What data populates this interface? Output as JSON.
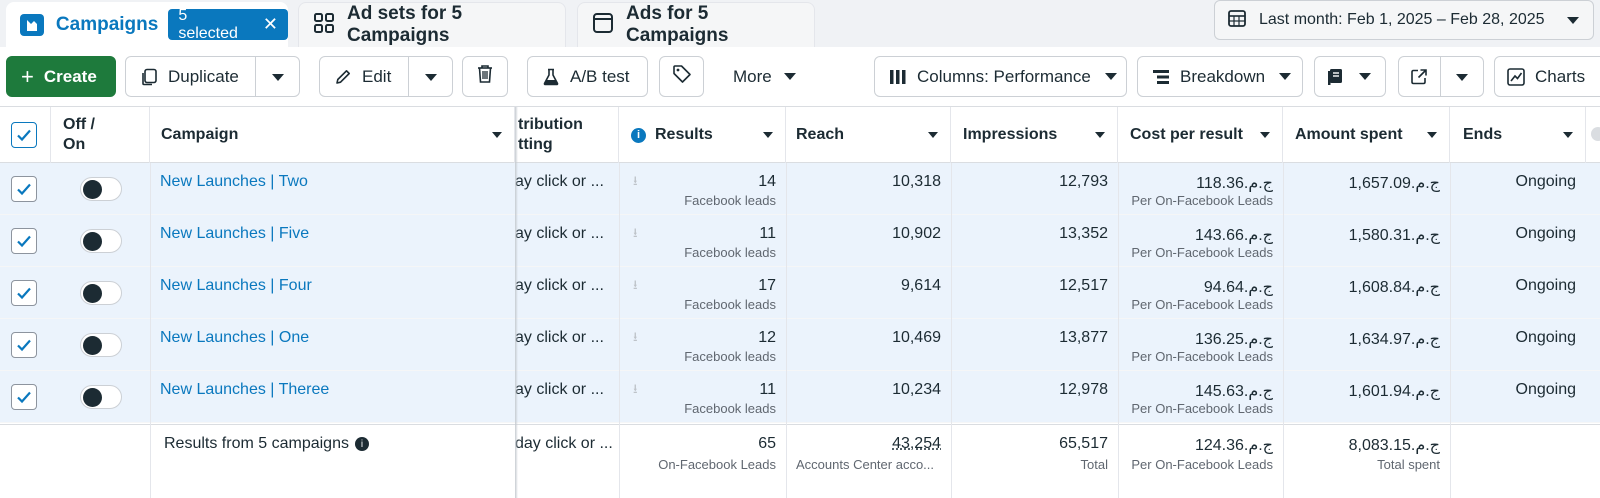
{
  "tabs": {
    "campaigns": {
      "label": "Campaigns",
      "badge": "5 selected"
    },
    "adsets": {
      "label": "Ad sets for 5 Campaigns"
    },
    "ads": {
      "label": "Ads for 5 Campaigns"
    }
  },
  "date_range": {
    "label": "Last month: Feb 1, 2025 – Feb 28, 2025"
  },
  "toolbar": {
    "create": "Create",
    "duplicate": "Duplicate",
    "edit": "Edit",
    "abtest": "A/B test",
    "more": "More",
    "columns": "Columns: Performance",
    "breakdown": "Breakdown",
    "charts": "Charts"
  },
  "columns": {
    "offon_line1": "Off /",
    "offon_line2": "On",
    "campaign": "Campaign",
    "attribution_line1": "tribution",
    "attribution_line2": "tting",
    "results": "Results",
    "reach": "Reach",
    "impressions": "Impressions",
    "cost_per_result": "Cost per result",
    "amount_spent": "Amount spent",
    "ends": "Ends"
  },
  "rows": [
    {
      "name": "New Launches | Two",
      "attribution": "ay click or ...",
      "results": "14",
      "results_sub": "Facebook leads",
      "reach": "10,318",
      "impressions": "12,793",
      "cpr": "ج.م.118.36",
      "cpr_sub": "Per On-Facebook Leads",
      "spent": "ج.م.1,657.09",
      "ends": "Ongoing"
    },
    {
      "name": "New Launches | Five",
      "attribution": "ay click or ...",
      "results": "11",
      "results_sub": "Facebook leads",
      "reach": "10,902",
      "impressions": "13,352",
      "cpr": "ج.م.143.66",
      "cpr_sub": "Per On-Facebook Leads",
      "spent": "ج.م.1,580.31",
      "ends": "Ongoing"
    },
    {
      "name": "New Launches | Four",
      "attribution": "ay click or ...",
      "results": "17",
      "results_sub": "Facebook leads",
      "reach": "9,614",
      "impressions": "12,517",
      "cpr": "ج.م.94.64",
      "cpr_sub": "Per On-Facebook Leads",
      "spent": "ج.م.1,608.84",
      "ends": "Ongoing"
    },
    {
      "name": "New Launches | One",
      "attribution": "ay click or ...",
      "results": "12",
      "results_sub": "Facebook leads",
      "reach": "10,469",
      "impressions": "13,877",
      "cpr": "ج.م.136.25",
      "cpr_sub": "Per On-Facebook Leads",
      "spent": "ج.م.1,634.97",
      "ends": "Ongoing"
    },
    {
      "name": "New Launches | Theree",
      "attribution": "ay click or ...",
      "results": "11",
      "results_sub": "Facebook leads",
      "reach": "10,234",
      "impressions": "12,978",
      "cpr": "ج.م.145.63",
      "cpr_sub": "Per On-Facebook Leads",
      "spent": "ج.م.1,601.94",
      "ends": "Ongoing"
    }
  ],
  "totals": {
    "label": "Results from 5 campaigns",
    "attribution": "day click or ...",
    "results": "65",
    "results_sub": "On-Facebook Leads",
    "reach": "43,254",
    "reach_sub": "Accounts Center acco...",
    "impressions": "65,517",
    "impressions_sub": "Total",
    "cpr": "ج.م.124.36",
    "cpr_sub": "Per On-Facebook Leads",
    "spent": "ج.م.8,083.15",
    "spent_sub": "Total spent"
  },
  "colors": {
    "accent": "#0a78be",
    "create_green": "#1e7a3c",
    "selected_row": "#ebf3fc"
  }
}
